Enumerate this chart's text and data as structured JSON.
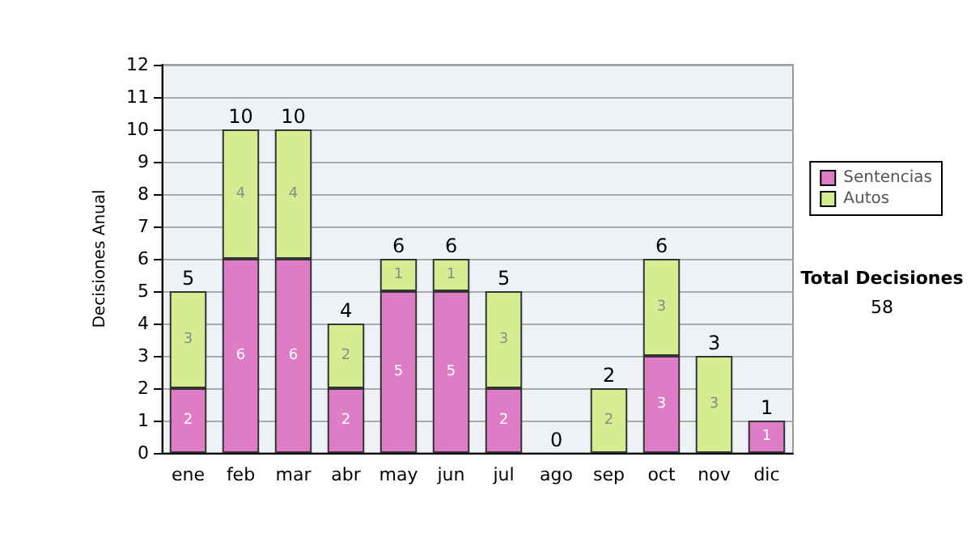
{
  "chart_data": {
    "type": "bar",
    "stacked": true,
    "ylabel": "Decisiones Anual",
    "categories": [
      "ene",
      "feb",
      "mar",
      "abr",
      "may",
      "jun",
      "jul",
      "ago",
      "sep",
      "oct",
      "nov",
      "dic"
    ],
    "series": [
      {
        "name": "Sentencias",
        "color": "#de7cc6",
        "values": [
          2,
          6,
          6,
          2,
          5,
          5,
          2,
          0,
          0,
          3,
          0,
          1
        ],
        "value_labels": [
          "2",
          "6",
          "6",
          "2",
          "5",
          "5",
          "2",
          null,
          null,
          "3",
          null,
          "1"
        ]
      },
      {
        "name": "Autos",
        "color": "#d5ec90",
        "values": [
          3,
          4,
          4,
          2,
          1,
          1,
          3,
          0,
          2,
          3,
          3,
          0
        ],
        "value_labels": [
          "3",
          "4",
          "4",
          "2",
          "1",
          "1",
          "3",
          null,
          "2",
          "3",
          "3",
          null
        ]
      }
    ],
    "totals": [
      "5",
      "10",
      "10",
      "4",
      "6",
      "6",
      "5",
      "0",
      "2",
      "6",
      "3",
      "1"
    ],
    "ylim": [
      0,
      12
    ],
    "yticks": [
      0,
      1,
      2,
      3,
      4,
      5,
      6,
      7,
      8,
      9,
      10,
      11,
      12
    ],
    "grid": "y",
    "legend": "right",
    "annotations": [
      "Total Decisiones",
      "58"
    ]
  }
}
